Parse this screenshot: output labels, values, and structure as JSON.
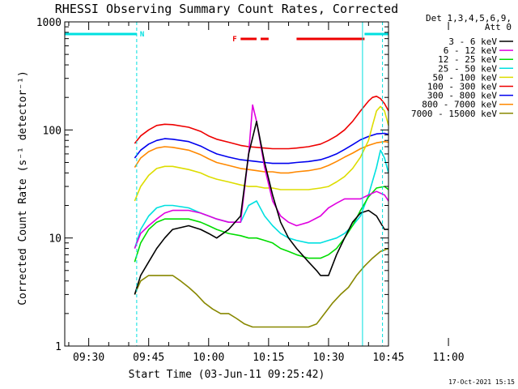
{
  "chart_data": {
    "type": "line",
    "title": "RHESSI Observing Summary Count Rates, Corrected",
    "xlabel": "Start Time (03-Jun-11 09:25:42)",
    "ylabel": "Corrected Count Rate (s⁻¹ detector⁻¹)",
    "y_scale": "log",
    "ylim": [
      1,
      1000
    ],
    "x_ticks": [
      "09:30",
      "09:45",
      "10:00",
      "10:15",
      "10:30",
      "10:45",
      "11:00"
    ],
    "y_ticks": [
      "1",
      "10",
      "100",
      "1000"
    ],
    "x_range_minutes_from_0930": [
      -6,
      75
    ],
    "legend_header": [
      "Det 1,3,4,5,6,9,",
      "Att 0"
    ],
    "series": [
      {
        "name": "3 - 6 keV",
        "color": "#000000",
        "x": [
          -6,
          11,
          11.5,
          13,
          15,
          17,
          19,
          21,
          25,
          28,
          30,
          32,
          35,
          38,
          40,
          42,
          44,
          46,
          48,
          50,
          52,
          55,
          57,
          58,
          60,
          62,
          64,
          66,
          68,
          70,
          72,
          74,
          75
        ],
        "y": [
          null,
          null,
          3,
          4.5,
          6,
          8,
          10,
          12,
          13,
          12,
          11,
          10,
          12,
          16,
          60,
          120,
          50,
          25,
          14,
          10,
          8,
          6,
          5,
          4.5,
          4.5,
          7,
          10,
          14,
          17,
          18,
          16,
          12,
          12
        ]
      },
      {
        "name": "6 - 12 keV",
        "color": "#e000e0",
        "x": [
          -6,
          11,
          11.5,
          13,
          15,
          17,
          19,
          21,
          25,
          28,
          30,
          32,
          35,
          38,
          40,
          41,
          42,
          44,
          46,
          48,
          50,
          52,
          55,
          58,
          60,
          62,
          64,
          66,
          68,
          70,
          72,
          74,
          75
        ],
        "y": [
          null,
          null,
          8,
          11,
          13,
          15,
          17,
          18,
          18,
          17,
          16,
          15,
          14,
          14,
          60,
          170,
          120,
          45,
          22,
          16,
          14,
          13,
          14,
          16,
          19,
          21,
          23,
          23,
          23,
          25,
          27,
          25,
          22
        ]
      },
      {
        "name": "12 - 25 keV",
        "color": "#00dd00",
        "x": [
          -6,
          11,
          11.5,
          13,
          15,
          17,
          19,
          21,
          25,
          28,
          30,
          32,
          35,
          38,
          40,
          42,
          44,
          46,
          48,
          50,
          52,
          55,
          58,
          60,
          62,
          64,
          66,
          68,
          70,
          72,
          74,
          75
        ],
        "y": [
          null,
          null,
          6,
          9,
          12,
          14,
          15,
          15,
          15,
          14,
          13,
          12,
          11,
          10.5,
          10,
          10,
          9.5,
          9,
          8,
          7.5,
          7,
          6.5,
          6.5,
          7,
          8,
          10,
          13,
          18,
          24,
          29,
          30,
          28
        ]
      },
      {
        "name": "25 - 50 keV",
        "color": "#00e0e0",
        "x": [
          -6,
          11,
          11.5,
          13,
          15,
          17,
          19,
          21,
          25,
          28,
          30,
          32,
          35,
          38,
          40,
          42,
          44,
          46,
          48,
          50,
          52,
          55,
          58,
          60,
          62,
          64,
          66,
          68,
          70,
          72,
          73,
          74,
          75
        ],
        "y": [
          null,
          null,
          8,
          12,
          16,
          19,
          20,
          20,
          19,
          17,
          16,
          15,
          14,
          14,
          20,
          22,
          16,
          13,
          11,
          10,
          9.5,
          9,
          9,
          9.5,
          10,
          11,
          13,
          16,
          25,
          45,
          65,
          55,
          40
        ]
      },
      {
        "name": "50 - 100 keV",
        "color": "#dddd00",
        "x": [
          -6,
          11,
          11.5,
          13,
          15,
          17,
          19,
          21,
          25,
          28,
          30,
          32,
          35,
          38,
          40,
          42,
          44,
          46,
          48,
          50,
          52,
          55,
          58,
          60,
          62,
          64,
          66,
          68,
          70,
          71,
          72,
          73,
          74,
          75
        ],
        "y": [
          null,
          null,
          22,
          30,
          38,
          44,
          46,
          46,
          43,
          40,
          37,
          35,
          33,
          31,
          30,
          30,
          29,
          29,
          28,
          28,
          28,
          28,
          29,
          30,
          33,
          37,
          44,
          56,
          80,
          110,
          150,
          165,
          150,
          110
        ]
      },
      {
        "name": "100 - 300 keV",
        "color": "#ee0000",
        "x": [
          -6,
          11,
          11.5,
          13,
          15,
          17,
          19,
          21,
          25,
          28,
          30,
          32,
          35,
          38,
          40,
          42,
          44,
          46,
          48,
          50,
          52,
          55,
          58,
          60,
          62,
          64,
          66,
          68,
          70,
          71,
          72,
          73,
          74,
          75
        ],
        "y": [
          null,
          null,
          75,
          88,
          100,
          110,
          113,
          112,
          106,
          97,
          88,
          82,
          77,
          72,
          70,
          69,
          68,
          67,
          67,
          67,
          68,
          70,
          74,
          80,
          88,
          100,
          120,
          150,
          185,
          200,
          205,
          195,
          175,
          150
        ]
      },
      {
        "name": "300 - 800 keV",
        "color": "#0000ee",
        "x": [
          -6,
          11,
          11.5,
          13,
          15,
          17,
          19,
          21,
          25,
          28,
          30,
          32,
          35,
          38,
          40,
          42,
          44,
          46,
          48,
          50,
          52,
          55,
          58,
          60,
          62,
          64,
          66,
          68,
          70,
          72,
          74,
          75
        ],
        "y": [
          null,
          null,
          55,
          65,
          74,
          80,
          83,
          82,
          78,
          71,
          65,
          60,
          56,
          53,
          52,
          51,
          50,
          49,
          49,
          49,
          50,
          51,
          53,
          56,
          60,
          66,
          73,
          81,
          87,
          92,
          93,
          91
        ]
      },
      {
        "name": "800 - 7000 keV",
        "color": "#ff8800",
        "x": [
          -6,
          11,
          11.5,
          13,
          15,
          17,
          19,
          21,
          25,
          28,
          30,
          32,
          35,
          38,
          40,
          42,
          44,
          46,
          48,
          50,
          52,
          55,
          58,
          60,
          62,
          64,
          66,
          68,
          70,
          72,
          74,
          75
        ],
        "y": [
          null,
          null,
          45,
          55,
          63,
          68,
          70,
          69,
          65,
          59,
          54,
          50,
          47,
          44,
          43,
          42,
          41,
          41,
          40,
          40,
          41,
          42,
          44,
          47,
          51,
          56,
          61,
          67,
          72,
          76,
          78,
          77
        ]
      },
      {
        "name": "7000 - 15000 keV",
        "color": "#888800",
        "x": [
          -6,
          11,
          11.5,
          13,
          15,
          17,
          19,
          21,
          23,
          25,
          27,
          29,
          31,
          33,
          35,
          37,
          39,
          41,
          43,
          45,
          47,
          49,
          51,
          53,
          55,
          57,
          59,
          61,
          63,
          65,
          67,
          69,
          71,
          73,
          75
        ],
        "y": [
          null,
          null,
          3,
          4,
          4.5,
          4.5,
          4.5,
          4.5,
          4,
          3.5,
          3,
          2.5,
          2.2,
          2,
          2,
          1.8,
          1.6,
          1.5,
          1.5,
          1.5,
          1.5,
          1.5,
          1.5,
          1.5,
          1.5,
          1.6,
          2,
          2.5,
          3,
          3.5,
          4.5,
          5.5,
          6.5,
          7.5,
          8
        ]
      }
    ],
    "flare_marker_label": "F",
    "night_marker_label": "N",
    "flare_intervals_minutes": [
      [
        38,
        42
      ],
      [
        43,
        45
      ],
      [
        52,
        69
      ]
    ],
    "night_intervals_minutes": [
      [
        -6,
        12
      ],
      [
        69,
        75
      ]
    ],
    "vertical_lines_minutes": [
      12,
      68.5,
      73.5
    ],
    "timestamp": "17-Oct-2021 15:15",
    "legend_position": "right"
  },
  "colors": {
    "axis": "#000000",
    "night_marker": "#00e0e0",
    "flare_marker": "#ee0000",
    "background": "#ffffff"
  }
}
